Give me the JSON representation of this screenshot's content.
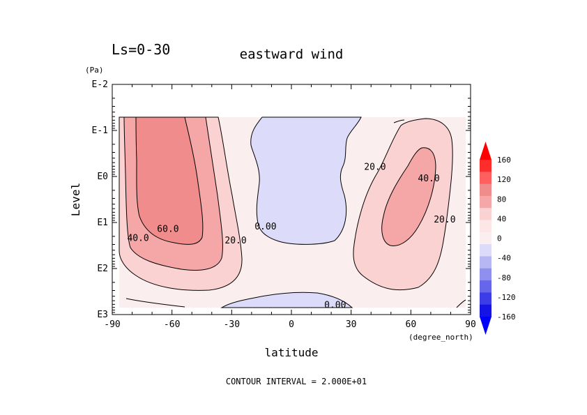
{
  "chart_data": {
    "type": "contour",
    "title": "eastward wind",
    "season_label": "Ls=0-30",
    "xlabel": "latitude",
    "x_unit": "(degree_north)",
    "ylabel": "Level",
    "y_unit": "(Pa)",
    "x_ticks": [
      "-90",
      "-60",
      "-30",
      "0",
      "30",
      "60",
      "90"
    ],
    "x_values": [
      -90,
      -60,
      -30,
      0,
      30,
      60,
      90
    ],
    "xlim": [
      -90,
      90
    ],
    "y_ticks": [
      "E-2",
      "E-1",
      "E0",
      "E1",
      "E2",
      "E3"
    ],
    "y_log10_values": [
      -2,
      -1,
      0,
      1,
      2,
      3
    ],
    "ylim_log10": [
      -2,
      3
    ],
    "y_scale": "log",
    "y_inverted": true,
    "contour_interval_text": "CONTOUR INTERVAL = 2.000E+01",
    "contour_labels": [
      {
        "text": "60.0",
        "lat": -62,
        "log10p": 1.15
      },
      {
        "text": "40.0",
        "lat": -77,
        "log10p": 1.35
      },
      {
        "text": "20.0",
        "lat": -28,
        "log10p": 1.4
      },
      {
        "text": "0.00",
        "lat": -13,
        "log10p": 1.1
      },
      {
        "text": "0.00",
        "lat": 22,
        "log10p": 2.8
      },
      {
        "text": "20.0",
        "lat": 42,
        "log10p": -0.2
      },
      {
        "text": "40.0",
        "lat": 69,
        "log10p": 0.05
      },
      {
        "text": "20.0",
        "lat": 77,
        "log10p": 0.95
      }
    ],
    "colorbar": {
      "labels": [
        "160",
        "120",
        "80",
        "40",
        "0",
        "-40",
        "-80",
        "-120",
        "-160"
      ],
      "levels": [
        160,
        120,
        80,
        40,
        0,
        -40,
        -80,
        -120,
        -160
      ],
      "colors": [
        "#ff0000",
        "#ff2c2c",
        "#ff5f5f",
        "#f08c8c",
        "#f5a6a6",
        "#fbd2d2",
        "#fde6e6",
        "#fbeeee",
        "#dcdcfa",
        "#b7b7f3",
        "#8f8fee",
        "#6666ea",
        "#3d3de8",
        "#1414e5",
        "#0000ff"
      ]
    },
    "fill_colors": {
      "lt0": "#dcdcfa",
      "0-20": "#fbeeee",
      "20-40": "#fbd2d2",
      "40-60": "#f5a6a6",
      "60-80": "#f08c8c"
    }
  }
}
